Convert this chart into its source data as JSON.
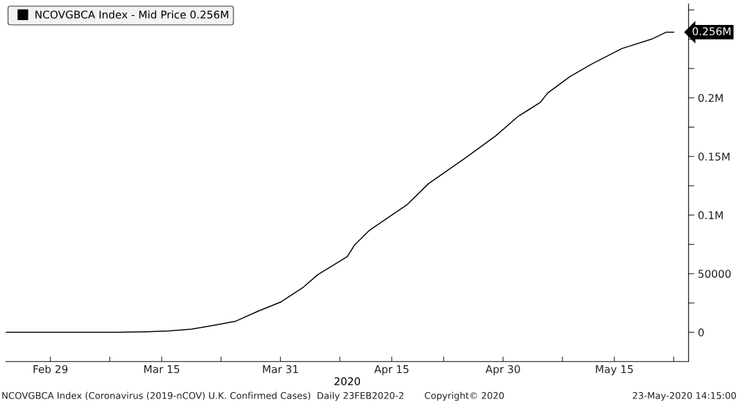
{
  "chart_data": {
    "type": "line",
    "xlabel": "2020",
    "x": [
      "2020-02-23",
      "2020-03-01",
      "2020-03-09",
      "2020-03-13",
      "2020-03-16",
      "2020-03-19",
      "2020-03-22",
      "2020-03-25",
      "2020-03-28",
      "2020-03-31",
      "2020-04-03",
      "2020-04-05",
      "2020-04-09",
      "2020-04-10",
      "2020-04-12",
      "2020-04-15",
      "2020-04-17",
      "2020-04-20",
      "2020-04-25",
      "2020-04-29",
      "2020-05-02",
      "2020-05-05",
      "2020-05-06",
      "2020-05-09",
      "2020-05-12",
      "2020-05-16",
      "2020-05-20",
      "2020-05-22",
      "2020-05-23"
    ],
    "series": [
      {
        "name": "NCOVGBCA Index - Mid Price 0.256M",
        "color": "#000000",
        "values": [
          0,
          0,
          0,
          500,
          1200,
          2700,
          5900,
          9500,
          18000,
          25700,
          38000,
          49000,
          64500,
          74500,
          87000,
          100000,
          108500,
          127000,
          149000,
          167500,
          184000,
          196000,
          204000,
          218000,
          229000,
          242000,
          250000,
          256000,
          256000
        ]
      }
    ],
    "xlim": [
      "2020-02-23",
      "2020-05-25"
    ],
    "xticks": [
      {
        "value": "2020-02-29",
        "label": "Feb 29"
      },
      {
        "value": "2020-03-08",
        "label": null
      },
      {
        "value": "2020-03-15",
        "label": "Mar 15"
      },
      {
        "value": "2020-03-23",
        "label": null
      },
      {
        "value": "2020-03-31",
        "label": "Mar 31"
      },
      {
        "value": "2020-04-08",
        "label": null
      },
      {
        "value": "2020-04-15",
        "label": "Apr 15"
      },
      {
        "value": "2020-04-22",
        "label": null
      },
      {
        "value": "2020-04-30",
        "label": "Apr 30"
      },
      {
        "value": "2020-05-08",
        "label": null
      },
      {
        "value": "2020-05-15",
        "label": "May 15"
      },
      {
        "value": "2020-05-23",
        "label": null
      }
    ],
    "ylim": [
      -25000,
      280000
    ],
    "yticks": [
      0,
      {
        "value": 25000,
        "label": null
      },
      50000,
      {
        "value": 75000,
        "label": null
      },
      {
        "value": 100000,
        "label": "0.1M"
      },
      {
        "value": 125000,
        "label": null
      },
      {
        "value": 150000,
        "label": "0.15M"
      },
      {
        "value": 175000,
        "label": null
      },
      {
        "value": 200000,
        "label": "0.2M"
      },
      {
        "value": 225000,
        "label": null
      },
      {
        "value": 250000,
        "label": null
      },
      {
        "value": 275000,
        "label": null
      }
    ],
    "annotations": [
      {
        "text": "0.256M",
        "x": "2020-05-23",
        "y": 256000
      },
      "NCOVGBCA Index (Coronavirus (2019-nCOV) U.K. Confirmed Cases)  Daily 23FEB2020-2",
      "Copyright© 2020",
      "23-May-2020 14:15:00"
    ],
    "legend": "top left",
    "grid": false,
    "marker": "none",
    "line_style": "solid"
  }
}
